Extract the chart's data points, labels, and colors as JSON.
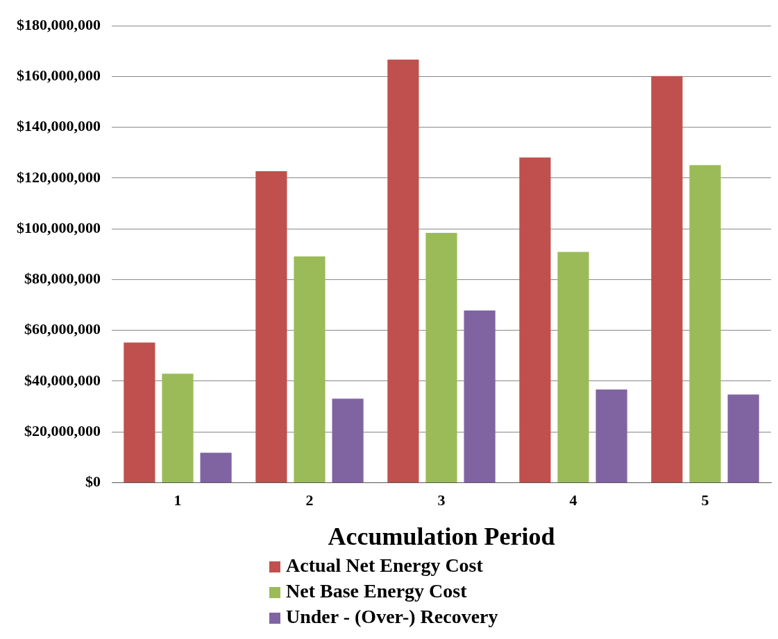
{
  "chart_data": {
    "type": "bar",
    "xlabel": "Accumulation Period",
    "categories": [
      "1",
      "2",
      "3",
      "4",
      "5"
    ],
    "series": [
      {
        "name": "Actual Net Energy Cost",
        "color": "#c0504d",
        "values": [
          55200000,
          122700000,
          166700000,
          128100000,
          160200000
        ]
      },
      {
        "name": "Net Base Energy Cost",
        "color": "#9bbb59",
        "values": [
          42900000,
          89100000,
          98400000,
          90900000,
          125100000
        ]
      },
      {
        "name": "Under - (Over-) Recovery",
        "color": "#8064a2",
        "values": [
          11800000,
          33100000,
          67800000,
          36700000,
          34700000
        ]
      }
    ],
    "ylim": [
      0,
      180000000
    ],
    "yticks": [
      {
        "value": 0,
        "label": "$0"
      },
      {
        "value": 20000000,
        "label": "$20,000,000"
      },
      {
        "value": 40000000,
        "label": "$40,000,000"
      },
      {
        "value": 60000000,
        "label": "$60,000,000"
      },
      {
        "value": 80000000,
        "label": "$80,000,000"
      },
      {
        "value": 100000000,
        "label": "$100,000,000"
      },
      {
        "value": 120000000,
        "label": "$120,000,000"
      },
      {
        "value": 140000000,
        "label": "$140,000,000"
      },
      {
        "value": 160000000,
        "label": "$160,000,000"
      },
      {
        "value": 180000000,
        "label": "$180,000,000"
      }
    ],
    "grid": "y",
    "legend": "bottom"
  }
}
